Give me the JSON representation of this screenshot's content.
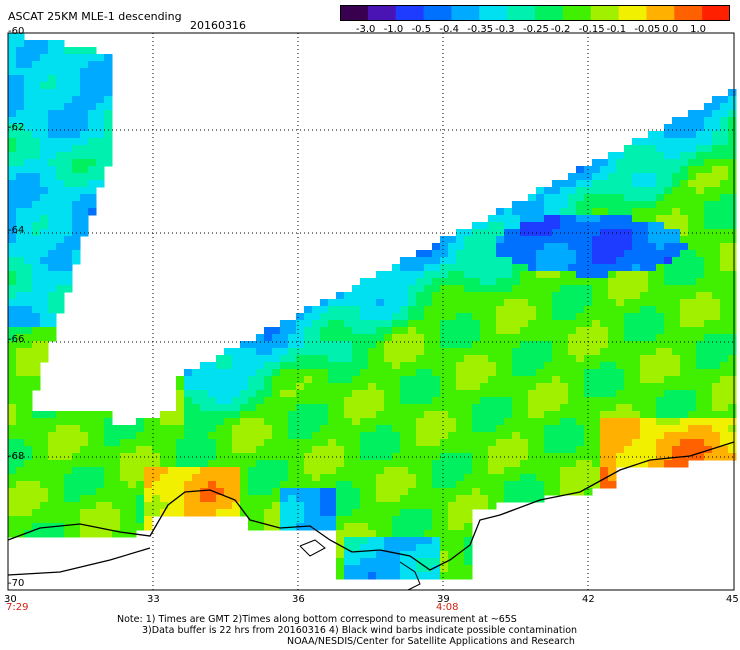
{
  "header": {
    "title": "ASCAT 25KM MLE-1 descending",
    "date": "20160316"
  },
  "colorbar": {
    "labels": [
      "-3.0",
      "-1.0",
      "-0.5",
      "-0.4",
      "-0.35",
      "-0.3",
      "-0.25",
      "-0.2",
      "-0.15",
      "-0.1",
      "-0.05",
      "0.0",
      "1.0"
    ],
    "colors": [
      "#3a0050",
      "#4a14b4",
      "#1e3cff",
      "#0070ff",
      "#00aaff",
      "#00e0f0",
      "#00f0b0",
      "#00f060",
      "#40f000",
      "#a0f000",
      "#f0f000",
      "#ffb000",
      "#ff6000",
      "#ff2000"
    ]
  },
  "map": {
    "lat_labels": [
      "-60",
      "-62",
      "-64",
      "-66",
      "-68",
      "-70"
    ],
    "lon_labels": [
      "30",
      "33",
      "36",
      "39",
      "42",
      "45"
    ],
    "land_color": "#ffffff",
    "coast_color": "#000000"
  },
  "times": {
    "left": "7:29",
    "middle": "4:08"
  },
  "notes": {
    "line1": "Note: 1) Times are GMT 2)Times along bottom correspond to measurement at ~65S",
    "line2": "3)Data buffer is 22 hrs from 20160316 4) Black wind barbs indicate possible contamination",
    "line3": "NOAA/NESDIS/Center for Satellite Applications and Research"
  }
}
